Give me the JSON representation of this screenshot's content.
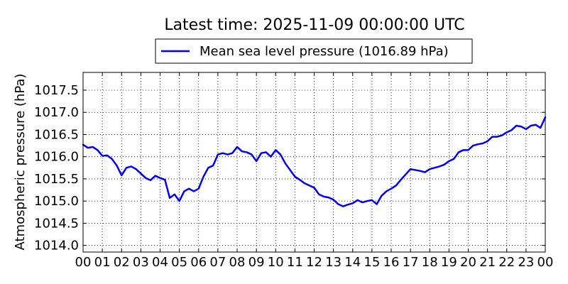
{
  "chart_data": {
    "type": "line",
    "title": "Latest time: 2025-11-09 00:00:00 UTC",
    "xlabel": "",
    "ylabel": "Atmospheric pressure (hPa)",
    "x_tick_labels": [
      "00",
      "01",
      "02",
      "03",
      "04",
      "05",
      "06",
      "07",
      "08",
      "09",
      "10",
      "11",
      "12",
      "13",
      "14",
      "15",
      "16",
      "17",
      "18",
      "19",
      "20",
      "21",
      "22",
      "23",
      "00"
    ],
    "xlim": [
      0,
      24
    ],
    "ylim": [
      1013.85,
      1017.9
    ],
    "y_ticks": [
      1014.0,
      1014.5,
      1015.0,
      1015.5,
      1016.0,
      1016.5,
      1017.0,
      1017.5
    ],
    "y_tick_labels": [
      "1014.0",
      "1014.5",
      "1015.0",
      "1015.5",
      "1016.0",
      "1016.5",
      "1017.0",
      "1017.5"
    ],
    "grid": true,
    "legend_position": "top-center",
    "series": [
      {
        "name": "Mean sea level pressure (1016.89 hPa)",
        "color": "#0000ff",
        "x": [
          0,
          0.25,
          0.5,
          0.75,
          1,
          1.25,
          1.5,
          1.75,
          2,
          2.25,
          2.5,
          2.75,
          3,
          3.25,
          3.5,
          3.75,
          4,
          4.25,
          4.5,
          4.75,
          5,
          5.25,
          5.5,
          5.75,
          6,
          6.25,
          6.5,
          6.75,
          7,
          7.25,
          7.5,
          7.75,
          8,
          8.25,
          8.5,
          8.75,
          9,
          9.25,
          9.5,
          9.75,
          10,
          10.25,
          10.5,
          10.75,
          11,
          11.25,
          11.5,
          11.75,
          12,
          12.25,
          12.5,
          12.75,
          13,
          13.25,
          13.5,
          13.75,
          14,
          14.25,
          14.5,
          14.75,
          15,
          15.25,
          15.5,
          15.75,
          16,
          16.25,
          16.5,
          16.75,
          17,
          17.25,
          17.5,
          17.75,
          18,
          18.25,
          18.5,
          18.75,
          19,
          19.25,
          19.5,
          19.75,
          20,
          20.25,
          20.5,
          20.75,
          21,
          21.25,
          21.5,
          21.75,
          22,
          22.25,
          22.5,
          22.75,
          23,
          23.25,
          23.5,
          23.75,
          24
        ],
        "y": [
          1016.27,
          1016.2,
          1016.22,
          1016.15,
          1016.02,
          1016.03,
          1015.95,
          1015.8,
          1015.58,
          1015.75,
          1015.78,
          1015.72,
          1015.62,
          1015.52,
          1015.47,
          1015.57,
          1015.52,
          1015.48,
          1015.07,
          1015.15,
          1015.0,
          1015.22,
          1015.28,
          1015.22,
          1015.28,
          1015.55,
          1015.75,
          1015.8,
          1016.05,
          1016.08,
          1016.05,
          1016.08,
          1016.22,
          1016.12,
          1016.1,
          1016.05,
          1015.9,
          1016.08,
          1016.1,
          1016.0,
          1016.15,
          1016.05,
          1015.85,
          1015.7,
          1015.55,
          1015.48,
          1015.4,
          1015.35,
          1015.3,
          1015.15,
          1015.1,
          1015.08,
          1015.03,
          1014.93,
          1014.88,
          1014.92,
          1014.95,
          1015.02,
          1014.97,
          1015.0,
          1015.02,
          1014.93,
          1015.12,
          1015.22,
          1015.28,
          1015.35,
          1015.48,
          1015.6,
          1015.72,
          1015.7,
          1015.68,
          1015.65,
          1015.72,
          1015.75,
          1015.78,
          1015.82,
          1015.9,
          1015.95,
          1016.1,
          1016.15,
          1016.15,
          1016.25,
          1016.28,
          1016.3,
          1016.35,
          1016.45,
          1016.45,
          1016.48,
          1016.55,
          1016.6,
          1016.7,
          1016.68,
          1016.62,
          1016.7,
          1016.72,
          1016.65,
          1016.89
        ]
      }
    ]
  }
}
